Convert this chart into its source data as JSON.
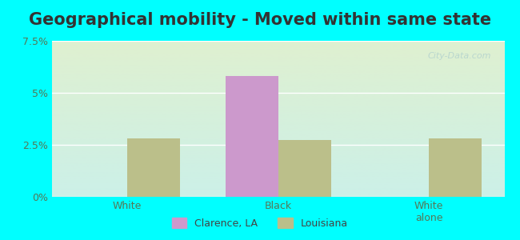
{
  "title": "Geographical mobility - Moved within same state",
  "categories": [
    "White",
    "Black",
    "White\nalone"
  ],
  "clarence_values": [
    0.0,
    5.8,
    0.0
  ],
  "louisiana_values": [
    2.8,
    2.75,
    2.8
  ],
  "clarence_color": "#cc99cc",
  "louisiana_color": "#bbbf8a",
  "bg_top": "#dff0d0",
  "bg_bottom": "#ccf0e8",
  "outer_bg": "#00ffff",
  "ylim": [
    0,
    7.5
  ],
  "yticks": [
    0,
    2.5,
    5.0,
    7.5
  ],
  "ytick_labels": [
    "0%",
    "2.5%",
    "5%",
    "7.5%"
  ],
  "bar_width": 0.35,
  "title_fontsize": 15,
  "watermark": "City-Data.com",
  "legend_clarence": "Clarence, LA",
  "legend_louisiana": "Louisiana"
}
